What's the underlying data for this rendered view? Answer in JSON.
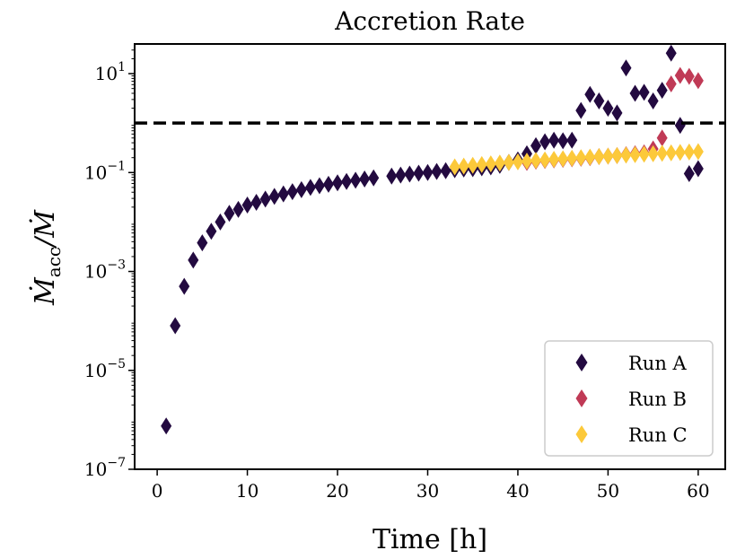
{
  "chart_data": {
    "type": "scatter",
    "title": "Accretion Rate",
    "xlabel": "Time [h]",
    "ylabel": "Ṁacc/Ṁ",
    "ylabel_main": "Ṁ",
    "ylabel_sub": "acc",
    "ylabel_den": "/Ṁ",
    "yscale": "log",
    "xlim": [
      -2.5,
      63
    ],
    "ylim_exp": [
      -7,
      1.6
    ],
    "xticks": [
      0,
      10,
      20,
      30,
      40,
      50,
      60
    ],
    "xtick_labels": [
      "0",
      "10",
      "20",
      "30",
      "40",
      "50",
      "60"
    ],
    "yticks_exp": [
      -7,
      -5,
      -3,
      -1,
      1
    ],
    "ytick_labels": [
      "10",
      "10",
      "10",
      "10",
      "10"
    ],
    "ytick_exponents": [
      "−7",
      "−5",
      "−3",
      "−1",
      "1"
    ],
    "reference_line": {
      "y": 1,
      "style": "dashed",
      "color": "#000000"
    },
    "legend_position": "lower-right",
    "marker": "diamond",
    "series": [
      {
        "name": "Run A",
        "color": "#230a40",
        "points": [
          [
            1,
            7.5e-07
          ],
          [
            2,
            8e-05
          ],
          [
            3,
            0.0005
          ],
          [
            4,
            0.0017
          ],
          [
            5,
            0.0038
          ],
          [
            6,
            0.0065
          ],
          [
            7,
            0.01
          ],
          [
            8,
            0.015
          ],
          [
            9,
            0.018
          ],
          [
            10,
            0.022
          ],
          [
            11,
            0.025
          ],
          [
            12,
            0.029
          ],
          [
            13,
            0.033
          ],
          [
            14,
            0.037
          ],
          [
            15,
            0.041
          ],
          [
            16,
            0.045
          ],
          [
            17,
            0.05
          ],
          [
            18,
            0.054
          ],
          [
            19,
            0.058
          ],
          [
            20,
            0.062
          ],
          [
            21,
            0.066
          ],
          [
            22,
            0.07
          ],
          [
            23,
            0.074
          ],
          [
            24,
            0.078
          ],
          [
            26,
            0.085
          ],
          [
            27,
            0.089
          ],
          [
            28,
            0.093
          ],
          [
            29,
            0.097
          ],
          [
            30,
            0.1
          ],
          [
            31,
            0.105
          ],
          [
            32,
            0.109
          ],
          [
            33,
            0.114
          ],
          [
            34,
            0.118
          ],
          [
            35,
            0.12
          ],
          [
            36,
            0.125
          ],
          [
            37,
            0.13
          ],
          [
            38,
            0.14
          ],
          [
            39,
            0.16
          ],
          [
            40,
            0.18
          ],
          [
            41,
            0.24
          ],
          [
            42,
            0.35
          ],
          [
            43,
            0.42
          ],
          [
            44,
            0.45
          ],
          [
            45,
            0.44
          ],
          [
            46,
            0.45
          ],
          [
            47,
            1.8
          ],
          [
            48,
            3.8
          ],
          [
            49,
            2.8
          ],
          [
            50,
            2.0
          ],
          [
            51,
            1.6
          ],
          [
            52,
            13
          ],
          [
            53,
            4.0
          ],
          [
            54,
            4.2
          ],
          [
            55,
            2.8
          ],
          [
            56,
            4.6
          ],
          [
            57,
            26
          ],
          [
            58,
            0.9
          ],
          [
            59,
            0.095
          ],
          [
            60,
            0.12
          ]
        ]
      },
      {
        "name": "Run B",
        "color": "#c03a56",
        "points": [
          [
            41,
            0.16
          ],
          [
            42,
            0.17
          ],
          [
            43,
            0.175
          ],
          [
            44,
            0.18
          ],
          [
            45,
            0.185
          ],
          [
            46,
            0.19
          ],
          [
            47,
            0.195
          ],
          [
            48,
            0.2
          ],
          [
            49,
            0.21
          ],
          [
            50,
            0.215
          ],
          [
            51,
            0.22
          ],
          [
            52,
            0.23
          ],
          [
            53,
            0.24
          ],
          [
            54,
            0.25
          ],
          [
            55,
            0.3
          ],
          [
            56,
            0.5
          ],
          [
            57,
            6.2
          ],
          [
            58,
            9.2
          ],
          [
            59,
            8.8
          ],
          [
            60,
            7.2
          ]
        ]
      },
      {
        "name": "Run C",
        "color": "#fcc93a",
        "points": [
          [
            33,
            0.13
          ],
          [
            34,
            0.135
          ],
          [
            35,
            0.14
          ],
          [
            36,
            0.145
          ],
          [
            37,
            0.15
          ],
          [
            38,
            0.155
          ],
          [
            39,
            0.16
          ],
          [
            40,
            0.165
          ],
          [
            41,
            0.17
          ],
          [
            42,
            0.175
          ],
          [
            43,
            0.18
          ],
          [
            44,
            0.185
          ],
          [
            45,
            0.19
          ],
          [
            46,
            0.195
          ],
          [
            47,
            0.2
          ],
          [
            48,
            0.205
          ],
          [
            49,
            0.21
          ],
          [
            50,
            0.215
          ],
          [
            51,
            0.22
          ],
          [
            52,
            0.225
          ],
          [
            53,
            0.23
          ],
          [
            54,
            0.235
          ],
          [
            55,
            0.24
          ],
          [
            56,
            0.245
          ],
          [
            57,
            0.25
          ],
          [
            58,
            0.255
          ],
          [
            59,
            0.26
          ],
          [
            60,
            0.265
          ]
        ]
      }
    ]
  }
}
